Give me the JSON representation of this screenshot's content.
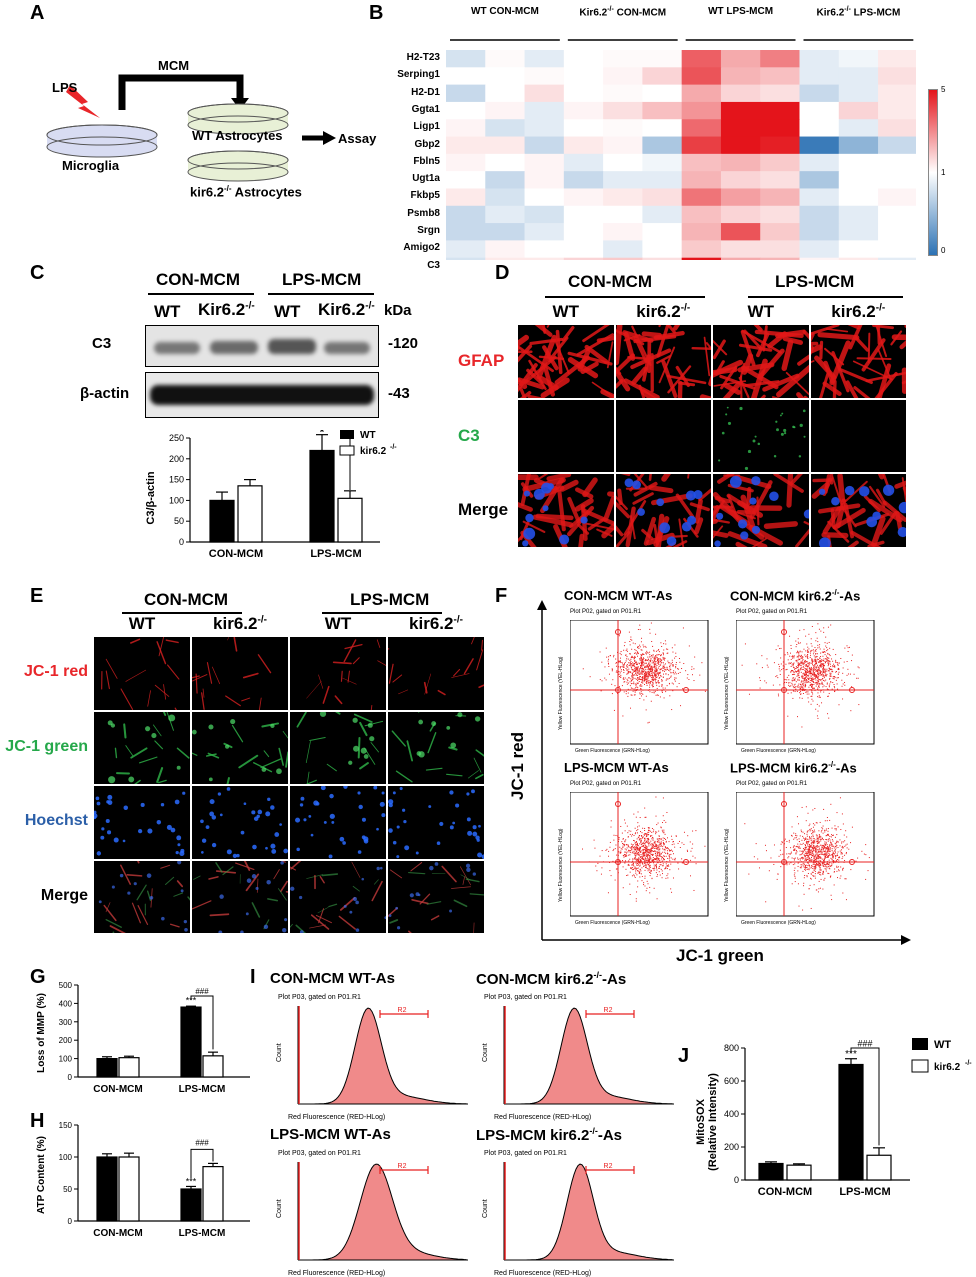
{
  "panels": {
    "A": "A",
    "B": "B",
    "C": "C",
    "D": "D",
    "E": "E",
    "F": "F",
    "G": "G",
    "H": "H",
    "I": "I",
    "J": "J"
  },
  "panelA": {
    "lps": "LPS",
    "mcm": "MCM",
    "microglia": "Microglia",
    "wt_astro": "WT Astrocytes",
    "kir_astro": "kir6.2",
    "kir_astro_sup": "-/-",
    "kir_astro_suffix": " Astrocytes",
    "assay": "Assay"
  },
  "panelB": {
    "groups": [
      {
        "label": "WT CON-MCM"
      },
      {
        "label": "Kir6.2",
        "sup": "-/-",
        "suffix": " CON-MCM"
      },
      {
        "label": "WT LPS-MCM"
      },
      {
        "label": "Kir6.2",
        "sup": "-/-",
        "suffix": " LPS-MCM"
      }
    ],
    "genes": [
      "H2-T23",
      "Serping1",
      "H2-D1",
      "Ggta1",
      "Ligp1",
      "Gbp2",
      "Fbln5",
      "Ugt1a",
      "Fkbp5",
      "Psmb8",
      "Srgn",
      "Amigo2",
      "C3"
    ],
    "matrix": [
      [
        0.85,
        1.05,
        0.9,
        1.0,
        1.05,
        1.05,
        2.5,
        1.8,
        2.2,
        0.9,
        0.95,
        1.2
      ],
      [
        1.0,
        1.0,
        1.05,
        1.0,
        1.1,
        1.4,
        2.6,
        1.7,
        1.6,
        0.9,
        0.9,
        1.3
      ],
      [
        0.8,
        1.0,
        1.3,
        1.0,
        1.05,
        1.0,
        1.8,
        1.4,
        1.3,
        0.8,
        0.9,
        1.2
      ],
      [
        1.0,
        1.1,
        0.9,
        1.1,
        1.3,
        1.6,
        2.0,
        4.5,
        4.0,
        1.0,
        1.4,
        1.2
      ],
      [
        1.1,
        0.85,
        0.9,
        1.0,
        1.05,
        1.0,
        2.4,
        4.8,
        4.6,
        1.0,
        0.9,
        1.3
      ],
      [
        1.2,
        1.2,
        0.8,
        1.2,
        1.1,
        0.7,
        2.8,
        3.5,
        3.1,
        0.3,
        0.6,
        0.8
      ],
      [
        1.1,
        1.0,
        1.1,
        0.9,
        1.0,
        0.95,
        1.6,
        1.7,
        1.5,
        0.9,
        1.0,
        1.0
      ],
      [
        1.0,
        0.8,
        1.1,
        0.8,
        0.9,
        0.9,
        1.7,
        1.4,
        1.3,
        0.7,
        1.0,
        1.0
      ],
      [
        1.2,
        0.85,
        1.0,
        1.1,
        1.2,
        1.3,
        2.3,
        1.9,
        1.7,
        0.9,
        1.0,
        1.1
      ],
      [
        0.8,
        0.9,
        0.85,
        1.0,
        1.0,
        0.9,
        1.6,
        1.4,
        1.3,
        0.8,
        0.9,
        1.0
      ],
      [
        0.8,
        0.8,
        0.9,
        1.0,
        1.1,
        1.0,
        1.7,
        2.6,
        1.5,
        0.8,
        0.9,
        1.0
      ],
      [
        0.9,
        1.1,
        1.0,
        1.0,
        0.9,
        1.0,
        1.5,
        1.3,
        1.3,
        0.9,
        1.0,
        1.0
      ],
      [
        0.85,
        1.2,
        1.2,
        1.4,
        1.5,
        1.3,
        3.8,
        1.8,
        1.7,
        1.1,
        1.2,
        0.9
      ]
    ],
    "scale_labels": [
      "5",
      "1",
      "0"
    ],
    "colors": {
      "high": "#e4141b",
      "mid": "#ffffff",
      "low": "#2c72b4"
    }
  },
  "panelC": {
    "con_mcm": "CON-MCM",
    "lps_mcm": "LPS-MCM",
    "wt": "WT",
    "kir": "Kir6.2",
    "kir_sup": "-/-",
    "kda": "kDa",
    "c3": "C3",
    "bactin": "β-actin",
    "mw_c3": "-120",
    "mw_bactin": "-43",
    "ylabel": "C3/β-actin",
    "sig": "#",
    "star": "*",
    "legend_wt": "WT",
    "legend_kir": "kir6.2",
    "legend_kir_sup": "-/-",
    "yticks": [
      "0",
      "50",
      "100",
      "150",
      "200",
      "250"
    ],
    "xcats": [
      "CON-MCM",
      "LPS-MCM"
    ]
  },
  "panelD": {
    "con_mcm": "CON-MCM",
    "lps_mcm": "LPS-MCM",
    "wt": "WT",
    "kir": "kir6.2",
    "kir_sup": "-/-",
    "rows": [
      "GFAP",
      "C3",
      "Merge"
    ],
    "row_colors": [
      "#e8262a",
      "#25a84a",
      "#000000"
    ]
  },
  "panelE": {
    "con_mcm": "CON-MCM",
    "lps_mcm": "LPS-MCM",
    "wt": "WT",
    "kir": "kir6.2",
    "kir_sup": "-/-",
    "rows": [
      "JC-1 red",
      "JC-1 green",
      "Hoechst",
      "Merge"
    ],
    "row_colors": [
      "#e8262a",
      "#25a84a",
      "#2b5fa8",
      "#000000"
    ]
  },
  "panelF": {
    "titles": [
      {
        "a": "CON-MCM WT-As"
      },
      {
        "a": "CON-MCM kir6.2",
        "sup": "-/-",
        "b": "-As"
      },
      {
        "a": "LPS-MCM WT-As"
      },
      {
        "a": "LPS-MCM kir6.2",
        "sup": "-/-",
        "b": "-As"
      }
    ],
    "plot_header": "Plot P02, gated on P01.R1",
    "yaxis": "Yellow Fluorescence (YEL-HLog)",
    "xaxis": "Green Fluorescence (GRN-HLog)",
    "ylabel": "JC-1 red",
    "xlabel": "JC-1 green"
  },
  "panelG": {
    "ylabel": "Loss of MMP (%)",
    "yticks": [
      "0",
      "100",
      "200",
      "300",
      "400",
      "500"
    ],
    "xcats": [
      "CON-MCM",
      "LPS-MCM"
    ],
    "stars": "***",
    "sig": "###"
  },
  "panelH": {
    "ylabel": "ATP Content (%)",
    "yticks": [
      "0",
      "50",
      "100",
      "150"
    ],
    "xcats": [
      "CON-MCM",
      "LPS-MCM"
    ],
    "stars": "***",
    "sig": "###"
  },
  "panelI": {
    "titles": [
      {
        "a": "CON-MCM WT-As"
      },
      {
        "a": "CON-MCM kir6.2",
        "sup": "-/-",
        "b": "-As"
      },
      {
        "a": "LPS-MCM WT-As"
      },
      {
        "a": "LPS-MCM kir6.2",
        "sup": "-/-",
        "b": "-As"
      }
    ],
    "plot_header": "Plot P03, gated on P01.R1",
    "ylabel": "Count",
    "xaxis": "Red Fluorescence (RED-HLog)",
    "gate": "R2"
  },
  "panelJ": {
    "ylabel1": "MitoSOX",
    "ylabel2": "(Relative Intensity)",
    "yticks": [
      "0",
      "200",
      "400",
      "600",
      "800"
    ],
    "xcats": [
      "CON-MCM",
      "LPS-MCM"
    ],
    "stars": "***",
    "sig": "###",
    "legend_wt": "WT",
    "legend_kir": "kir6.2",
    "legend_kir_sup": "-/-"
  },
  "chart_data": [
    {
      "type": "bar",
      "panel": "C",
      "categories": [
        "CON-MCM",
        "LPS-MCM"
      ],
      "ylabel": "C3/β-actin",
      "ylim": [
        0,
        250
      ],
      "series": [
        {
          "name": "WT",
          "values": [
            100,
            220
          ],
          "errors": [
            20,
            38
          ]
        },
        {
          "name": "kir6.2-/-",
          "values": [
            135,
            105
          ],
          "errors": [
            15,
            18
          ]
        }
      ]
    },
    {
      "type": "bar",
      "panel": "G",
      "categories": [
        "CON-MCM",
        "LPS-MCM"
      ],
      "ylabel": "Loss of MMP (%)",
      "ylim": [
        0,
        500
      ],
      "series": [
        {
          "name": "WT",
          "values": [
            100,
            380
          ],
          "errors": [
            10,
            5
          ]
        },
        {
          "name": "kir6.2-/-",
          "values": [
            105,
            115
          ],
          "errors": [
            8,
            20
          ]
        }
      ]
    },
    {
      "type": "bar",
      "panel": "H",
      "categories": [
        "CON-MCM",
        "LPS-MCM"
      ],
      "ylabel": "ATP Content (%)",
      "ylim": [
        0,
        150
      ],
      "series": [
        {
          "name": "WT",
          "values": [
            100,
            50
          ],
          "errors": [
            5,
            4
          ]
        },
        {
          "name": "kir6.2-/-",
          "values": [
            100,
            85
          ],
          "errors": [
            6,
            5
          ]
        }
      ]
    },
    {
      "type": "bar",
      "panel": "J",
      "categories": [
        "CON-MCM",
        "LPS-MCM"
      ],
      "ylabel": "MitoSOX (Relative Intensity)",
      "ylim": [
        0,
        800
      ],
      "series": [
        {
          "name": "WT",
          "values": [
            100,
            700
          ],
          "errors": [
            10,
            35
          ]
        },
        {
          "name": "kir6.2-/-",
          "values": [
            90,
            150
          ],
          "errors": [
            8,
            45
          ]
        }
      ]
    }
  ]
}
